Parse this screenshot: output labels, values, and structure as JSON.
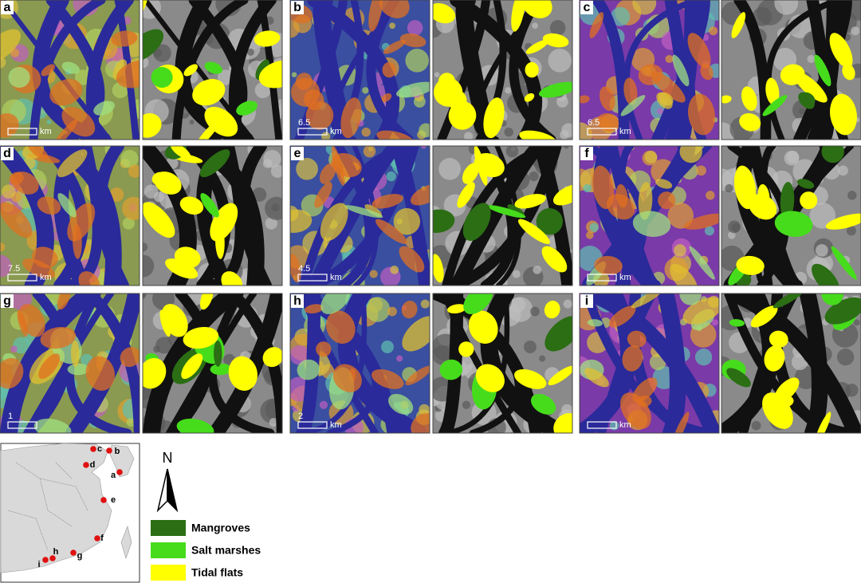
{
  "panels": [
    {
      "label": "a",
      "scale": {
        "unit": "km"
      }
    },
    {
      "label": "b",
      "scale": {
        "value": "6.5",
        "unit": "km"
      }
    },
    {
      "label": "c",
      "scale": {
        "value": "6.5",
        "unit": "km"
      }
    },
    {
      "label": "d",
      "scale": {
        "value": "7.5",
        "unit": "km"
      }
    },
    {
      "label": "e",
      "scale": {
        "value": "4.5",
        "unit": "km"
      }
    },
    {
      "label": "f",
      "scale": {
        "unit": "km"
      }
    },
    {
      "label": "g",
      "scale": {
        "value": "1"
      }
    },
    {
      "label": "h",
      "scale": {
        "value": "2",
        "unit": "km"
      }
    },
    {
      "label": "i",
      "scale": {
        "unit": "km"
      }
    }
  ],
  "map": {
    "sites": [
      "a",
      "b",
      "c",
      "d",
      "e",
      "f",
      "g",
      "h",
      "i"
    ]
  },
  "north": "N",
  "legend": [
    {
      "label": "Mangroves",
      "color": "#2b6e14"
    },
    {
      "label": "Salt marshes",
      "color": "#46dc1c"
    },
    {
      "label": "Tidal flats",
      "color": "#ffff00"
    }
  ]
}
